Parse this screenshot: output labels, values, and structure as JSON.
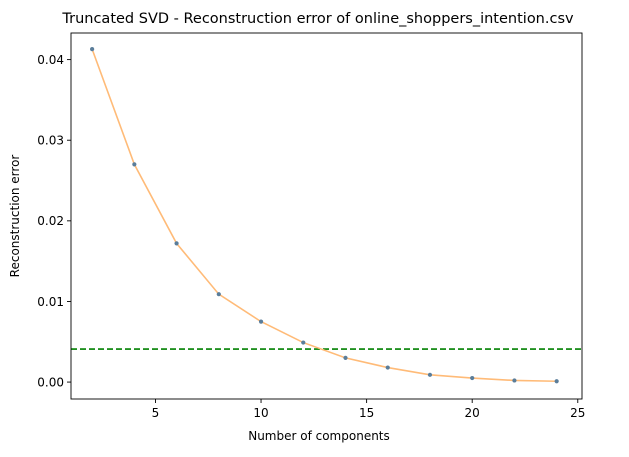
{
  "chart_data": {
    "type": "line",
    "title": "Truncated SVD - Reconstruction error of online_shoppers_intention.csv",
    "xlabel": "Number of components",
    "ylabel": "Reconstruction error",
    "xlim": [
      1,
      25.2
    ],
    "ylim": [
      -0.0021,
      0.0433
    ],
    "x_ticks": [
      5,
      10,
      15,
      20,
      25
    ],
    "x_tick_labels": [
      "5",
      "10",
      "15",
      "20",
      "25"
    ],
    "y_ticks": [
      0.0,
      0.01,
      0.02,
      0.03,
      0.04
    ],
    "y_tick_labels": [
      "0.00",
      "0.01",
      "0.02",
      "0.03",
      "0.04"
    ],
    "grid": false,
    "legend": "none",
    "series": [
      {
        "x": [
          2,
          4,
          6,
          8,
          10,
          12,
          14,
          16,
          18,
          20,
          22,
          24
        ],
        "values": [
          0.0413,
          0.027,
          0.0172,
          0.0109,
          0.0075,
          0.0049,
          0.003,
          0.0018,
          0.0009,
          0.0005,
          0.0002,
          0.0001
        ],
        "line_color": "#ffbb78",
        "marker_color": "#5a7d9a"
      }
    ],
    "threshold": {
      "value": 0.0041,
      "color": "#008000",
      "style": "dashed"
    }
  }
}
